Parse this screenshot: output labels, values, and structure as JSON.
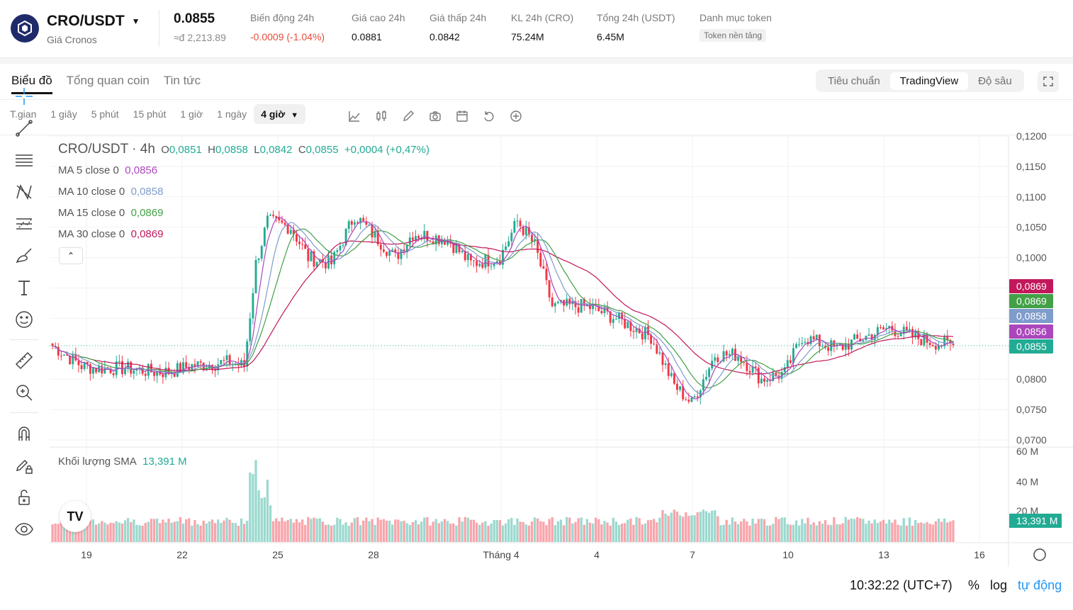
{
  "header": {
    "pair": "CRO/USDT",
    "subtitle": "Giá Cronos",
    "price": "0.0855",
    "price_fiat": "≈đ 2,213.89",
    "stats": [
      {
        "label": "Biến động 24h",
        "value": "-0.0009 (-1.04%)",
        "neg": true
      },
      {
        "label": "Giá cao 24h",
        "value": "0.0881"
      },
      {
        "label": "Giá thấp 24h",
        "value": "0.0842"
      },
      {
        "label": "KL 24h (CRO)",
        "value": "75.24M"
      },
      {
        "label": "Tổng 24h (USDT)",
        "value": "6.45M"
      }
    ],
    "category_label": "Danh mục token",
    "category_badge": "Token nền tảng"
  },
  "tabs": [
    "Biểu đồ",
    "Tổng quan coin",
    "Tin tức"
  ],
  "view_modes": [
    "Tiêu chuẩn",
    "TradingView",
    "Độ sâu"
  ],
  "timeframes": [
    "T.gian",
    "1 giây",
    "5 phút",
    "15 phút",
    "1 giờ",
    "1 ngày"
  ],
  "timeframe_selected": "4 giờ",
  "legend": {
    "title": "CRO/USDT · 4h",
    "o_label": "O",
    "o": "0,0851",
    "h_label": "H",
    "h": "0,0858",
    "l_label": "L",
    "l": "0,0842",
    "c_label": "C",
    "c": "0,0855",
    "change": "+0,0004 (+0,47%)",
    "ma": [
      {
        "label": "MA 5 close 0",
        "value": "0,0856",
        "color": "#ab47bc"
      },
      {
        "label": "MA 10 close 0",
        "value": "0,0858",
        "color": "#7e9ccc"
      },
      {
        "label": "MA 15 close 0",
        "value": "0,0869",
        "color": "#43a047"
      },
      {
        "label": "MA 30 close 0",
        "value": "0,0869",
        "color": "#c2185b"
      }
    ],
    "volume_label": "Khối lượng SMA",
    "volume_value": "13,391 M"
  },
  "price_axis": [
    "0,1200",
    "0,1150",
    "0,1100",
    "0,1050",
    "0,1000",
    "0,0800",
    "0,0750",
    "0,0700"
  ],
  "price_tags": [
    {
      "text": "0,0869",
      "color": "#c2185b"
    },
    {
      "text": "0,0869",
      "color": "#43a047"
    },
    {
      "text": "0,0858",
      "color": "#7e9ccc"
    },
    {
      "text": "0,0856",
      "color": "#ab47bc"
    },
    {
      "text": "0,0855",
      "color": "#22ab94"
    }
  ],
  "volume_axis": [
    "60 M",
    "40 M",
    "20 M"
  ],
  "volume_tag": "13,391 M",
  "time_axis": [
    "19",
    "22",
    "25",
    "28",
    "Tháng 4",
    "4",
    "7",
    "10",
    "13",
    "16"
  ],
  "footer": {
    "time": "10:32:22 (UTC+7)",
    "percent": "%",
    "log": "log",
    "auto": "tự động"
  },
  "colors": {
    "up": "#22ab94",
    "down": "#f23645"
  }
}
